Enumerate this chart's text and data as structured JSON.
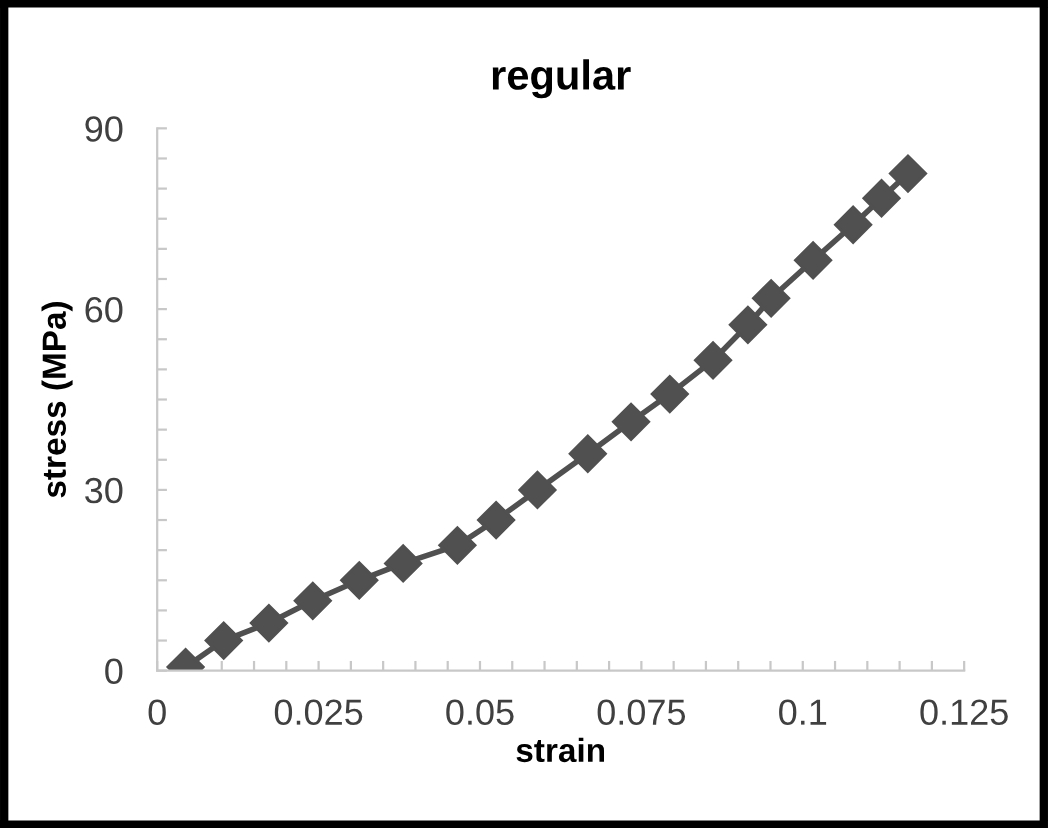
{
  "chart_data": {
    "type": "line",
    "title": "regular",
    "xlabel": "strain",
    "ylabel": "stress (MPa)",
    "x": [
      0.0044,
      0.0103,
      0.0173,
      0.0241,
      0.0313,
      0.0381,
      0.0465,
      0.0525,
      0.0589,
      0.0667,
      0.0734,
      0.0794,
      0.0861,
      0.0915,
      0.0951,
      0.1016,
      0.1078,
      0.1122,
      0.1163
    ],
    "series": [
      {
        "color": "#505050",
        "values": [
          0.6,
          5.0,
          7.9,
          11.6,
          15.0,
          17.8,
          20.8,
          25.0,
          30.0,
          36.0,
          41.3,
          45.9,
          51.5,
          57.4,
          61.8,
          68.1,
          74.0,
          78.4,
          82.5
        ]
      }
    ],
    "marker": "diamond",
    "line_style": "solid",
    "grid": false,
    "legend": false,
    "xlim": [
      0,
      0.125
    ],
    "ylim": [
      0,
      90
    ],
    "xticks": [
      0,
      0.025,
      0.05,
      0.075,
      0.1,
      0.125,
      {
        "value": 0.005,
        "label": null
      },
      {
        "value": 0.01,
        "label": null
      },
      {
        "value": 0.015,
        "label": null
      },
      {
        "value": 0.02,
        "label": null
      },
      {
        "value": 0.03,
        "label": null
      },
      {
        "value": 0.035,
        "label": null
      },
      {
        "value": 0.04,
        "label": null
      },
      {
        "value": 0.045,
        "label": null
      },
      {
        "value": 0.055,
        "label": null
      },
      {
        "value": 0.06,
        "label": null
      },
      {
        "value": 0.065,
        "label": null
      },
      {
        "value": 0.07,
        "label": null
      },
      {
        "value": 0.08,
        "label": null
      },
      {
        "value": 0.085,
        "label": null
      },
      {
        "value": 0.09,
        "label": null
      },
      {
        "value": 0.095,
        "label": null
      },
      {
        "value": 0.105,
        "label": null
      },
      {
        "value": 0.11,
        "label": null
      },
      {
        "value": 0.115,
        "label": null
      },
      {
        "value": 0.12,
        "label": null
      }
    ],
    "yticks": [
      0,
      30,
      60,
      90,
      {
        "value": 5,
        "label": null
      },
      {
        "value": 10,
        "label": null
      },
      {
        "value": 15,
        "label": null
      },
      {
        "value": 20,
        "label": null
      },
      {
        "value": 25,
        "label": null
      },
      {
        "value": 35,
        "label": null
      },
      {
        "value": 40,
        "label": null
      },
      {
        "value": 45,
        "label": null
      },
      {
        "value": 50,
        "label": null
      },
      {
        "value": 55,
        "label": null
      },
      {
        "value": 65,
        "label": null
      },
      {
        "value": 70,
        "label": null
      },
      {
        "value": 75,
        "label": null
      },
      {
        "value": 80,
        "label": null
      },
      {
        "value": 85,
        "label": null
      }
    ]
  }
}
